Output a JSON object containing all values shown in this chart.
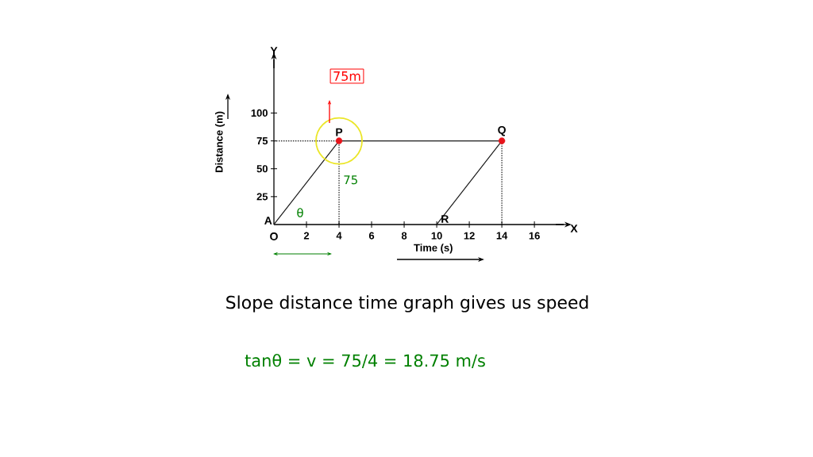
{
  "chart_data": {
    "type": "line",
    "xlabel": "Time (s)",
    "ylabel": "Distance (m)",
    "xlim": [
      0,
      17.8
    ],
    "ylim": [
      0,
      148
    ],
    "xticks": [
      2,
      4,
      6,
      8,
      10,
      12,
      14,
      16
    ],
    "yticks": [
      25,
      50,
      75,
      100
    ],
    "line_style": "solid",
    "series": [
      {
        "color": "#1a1a1a",
        "x": [
          0,
          4,
          14,
          10
        ],
        "values": [
          0,
          75,
          75,
          0
        ]
      },
      {
        "color": "#1a1a1a",
        "line_style": "dotted",
        "x": [
          0,
          4,
          4
        ],
        "values": [
          75,
          75,
          0
        ]
      },
      {
        "color": "#1a1a1a",
        "line_style": "dotted",
        "x": [
          14,
          14
        ],
        "values": [
          75,
          0
        ]
      },
      {
        "type": "scatter",
        "color": "#e8141b",
        "x": [
          4,
          14
        ],
        "values": [
          75,
          75
        ]
      }
    ],
    "annotations": [
      "Y",
      "X",
      "O",
      {
        "text": "A",
        "x": 0,
        "y": 0
      },
      {
        "text": "P",
        "x": 4,
        "y": 75
      },
      {
        "text": "Q",
        "x": 14,
        "y": 75
      },
      {
        "text": "R",
        "x": 10,
        "y": 0
      },
      "θ",
      {
        "text": "75",
        "x": 4,
        "y": 40
      },
      "75m",
      "Slope distance time graph gives us speed",
      "tanθ = v = 75/4 = 18.75 m/s"
    ]
  }
}
